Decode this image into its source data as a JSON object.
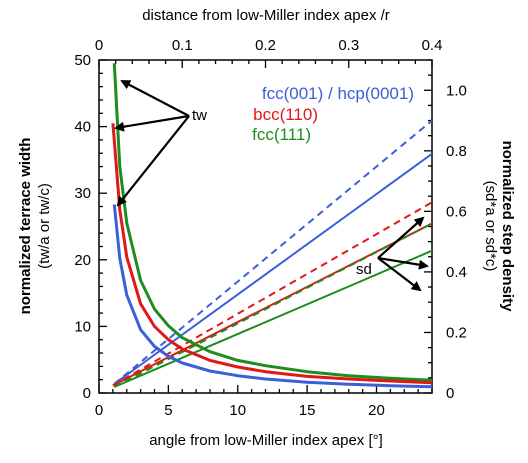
{
  "chart_data": {
    "type": "line",
    "xlabel": "angle from low-Miller index apex [°]",
    "x_top_label": "distance from low-Miller index apex /r",
    "ylabel": "normalized terrace width",
    "ylabel_sub": "(tw/a or tw/c)",
    "y2label": "normalized step density",
    "y2label_sub": "(sd*a or sd*c)",
    "xlim": [
      0,
      24
    ],
    "ylim": [
      0,
      50
    ],
    "y2lim": [
      0,
      1.1
    ],
    "x_ticks": [
      "0",
      "5",
      "10",
      "15",
      "20"
    ],
    "x_top_ticks": [
      "0",
      "0.1",
      "0.2",
      "0.3",
      "0.4"
    ],
    "y_ticks": [
      "0",
      "10",
      "20",
      "30",
      "40",
      "50"
    ],
    "y2_ticks": [
      "0",
      "0.2",
      "0.4",
      "0.6",
      "0.8",
      "1.0"
    ],
    "grid": false,
    "legend_placement": "top-right",
    "colors": {
      "blue": "#3a5fd9",
      "red": "#e01818",
      "green": "#1e8c1e"
    },
    "series": [
      {
        "name": "fcc(001) / hcp(0001)",
        "color": "#3a5fd9",
        "terrace_width": {
          "x": [
            1.1,
            1.5,
            2,
            3,
            4,
            5,
            6,
            8,
            10,
            12,
            15,
            18,
            21,
            24
          ],
          "y": [
            28.3,
            20.2,
            14.7,
            9.5,
            7.0,
            5.5,
            4.5,
            3.3,
            2.6,
            2.1,
            1.6,
            1.3,
            1.1,
            0.95
          ]
        },
        "step_density_solid": {
          "x": [
            1.1,
            24
          ],
          "y": [
            0.03,
            0.79
          ]
        },
        "step_density_dashed": {
          "x": [
            1.1,
            24
          ],
          "y": [
            0.03,
            0.9
          ]
        }
      },
      {
        "name": "bcc(110)",
        "color": "#e01818",
        "terrace_width": {
          "x": [
            1.0,
            1.5,
            2,
            3,
            4,
            5,
            6,
            8,
            10,
            12,
            15,
            18,
            21,
            24
          ],
          "y": [
            40.5,
            27.5,
            20.4,
            13.4,
            10.0,
            8.0,
            6.6,
            4.9,
            3.9,
            3.2,
            2.5,
            2.1,
            1.8,
            1.55
          ]
        },
        "step_density_solid": {
          "x": [
            1.0,
            24
          ],
          "y": [
            0.025,
            0.56
          ]
        },
        "step_density_dashed": {
          "x": [
            1.0,
            24
          ],
          "y": [
            0.025,
            0.63
          ]
        }
      },
      {
        "name": "fcc(111)",
        "color": "#1e8c1e",
        "terrace_width": {
          "x": [
            1.1,
            1.5,
            2,
            3,
            4,
            5,
            6,
            8,
            10,
            12,
            15,
            18,
            21,
            24
          ],
          "y": [
            49.5,
            34.0,
            25.5,
            16.9,
            12.6,
            10.1,
            8.3,
            6.2,
            4.9,
            4.1,
            3.2,
            2.6,
            2.2,
            1.9
          ]
        },
        "step_density_solid": {
          "x": [
            1.1,
            24
          ],
          "y": [
            0.02,
            0.47
          ]
        },
        "step_density_dashed": {
          "x": [
            1.1,
            24
          ],
          "y": [
            0.02,
            0.56
          ]
        }
      }
    ],
    "annotations": [
      {
        "text": "tw"
      },
      {
        "text": "sd"
      }
    ]
  }
}
